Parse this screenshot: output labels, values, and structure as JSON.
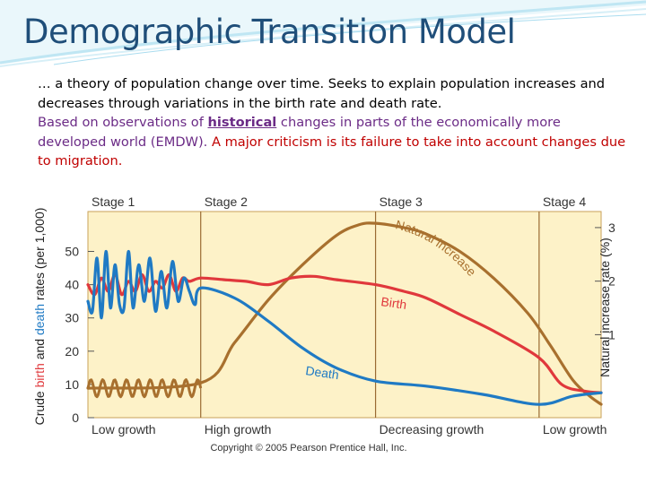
{
  "slide": {
    "title": "Demographic Transition Model",
    "line1": "… a theory of population change over time. Seeks to explain population increases and decreases through variations in the birth rate and death rate.",
    "line2_a": "Based on observations of ",
    "line2_keyword": "historical",
    "line2_b": " changes in parts of the economically more developed world (EMDW). ",
    "line2_c": "A major criticism is its failure to take into account changes due to migration."
  },
  "colors": {
    "title": "#1f4e79",
    "plot_bg": "#fdf2c8",
    "birth": "#e0383c",
    "death": "#1f7ac4",
    "natural_increase": "#a8702e",
    "divider": "#9a6b32"
  },
  "chart_data": {
    "type": "line",
    "stages": [
      "Stage 1",
      "Stage 2",
      "Stage 3",
      "Stage 4"
    ],
    "stage_bounds": [
      0,
      1.0,
      2.55,
      4.0,
      4.55
    ],
    "growth_labels": [
      "Low growth",
      "High growth",
      "Decreasing growth",
      "Low growth"
    ],
    "left_axis": {
      "label_parts": [
        "Crude ",
        "birth",
        " and ",
        "death",
        " rates (per 1,000)"
      ],
      "ticks": [
        0,
        10,
        20,
        30,
        40,
        50
      ],
      "range": [
        0,
        62
      ]
    },
    "right_axis": {
      "label": "Natural increase rate (%)",
      "ticks": [
        1,
        2,
        3
      ],
      "range": [
        -0.55,
        3.3
      ]
    },
    "series": [
      {
        "name": "Birth",
        "axis": "left",
        "x": [
          0,
          0.06,
          0.12,
          0.18,
          0.24,
          0.3,
          0.36,
          0.42,
          0.48,
          0.54,
          0.6,
          0.66,
          0.72,
          0.78,
          0.84,
          0.9,
          1.0,
          1.2,
          1.4,
          1.6,
          1.8,
          2.0,
          2.2,
          2.55,
          2.8,
          3.0,
          3.3,
          3.6,
          4.0,
          4.2,
          4.4,
          4.55
        ],
        "y": [
          40,
          37,
          42,
          38,
          43,
          37,
          41,
          38,
          43,
          38,
          41,
          39,
          43,
          38,
          42,
          41,
          42,
          41.5,
          41,
          40,
          42,
          42.5,
          41.5,
          40,
          38,
          36,
          31,
          26,
          18,
          10,
          8,
          7.5
        ]
      },
      {
        "name": "Death",
        "axis": "left",
        "x": [
          0,
          0.04,
          0.08,
          0.12,
          0.16,
          0.2,
          0.24,
          0.28,
          0.32,
          0.36,
          0.4,
          0.45,
          0.5,
          0.55,
          0.6,
          0.65,
          0.7,
          0.75,
          0.8,
          0.85,
          0.9,
          0.95,
          1.0,
          1.3,
          1.6,
          1.9,
          2.2,
          2.55,
          3.0,
          3.5,
          4.0,
          4.3,
          4.55
        ],
        "y": [
          35,
          32,
          48,
          30,
          50,
          33,
          46,
          34,
          33,
          50,
          33,
          46,
          35,
          48,
          32,
          44,
          33,
          47,
          35,
          42,
          38,
          34,
          39,
          36,
          29,
          21,
          15,
          11,
          9.5,
          7,
          4,
          6.5,
          7.5
        ]
      },
      {
        "name": "Natural increase",
        "axis": "right",
        "x": [
          0,
          1.0,
          1.3,
          1.6,
          1.9,
          2.2,
          2.4,
          2.55,
          2.8,
          3.0,
          3.3,
          3.6,
          3.9,
          4.1,
          4.3,
          4.45,
          4.55
        ],
        "y": [
          0,
          0.1,
          0.85,
          1.65,
          2.3,
          2.85,
          3.05,
          3.08,
          3.0,
          2.88,
          2.55,
          2.05,
          1.4,
          0.8,
          0.15,
          -0.15,
          -0.3
        ]
      }
    ],
    "annotations": [
      {
        "text": "Natural increase",
        "color": "brown"
      },
      {
        "text": "Birth",
        "color": "red"
      },
      {
        "text": "Death",
        "color": "blue"
      }
    ],
    "copyright": "Copyright © 2005 Pearson Prentice Hall, Inc."
  }
}
